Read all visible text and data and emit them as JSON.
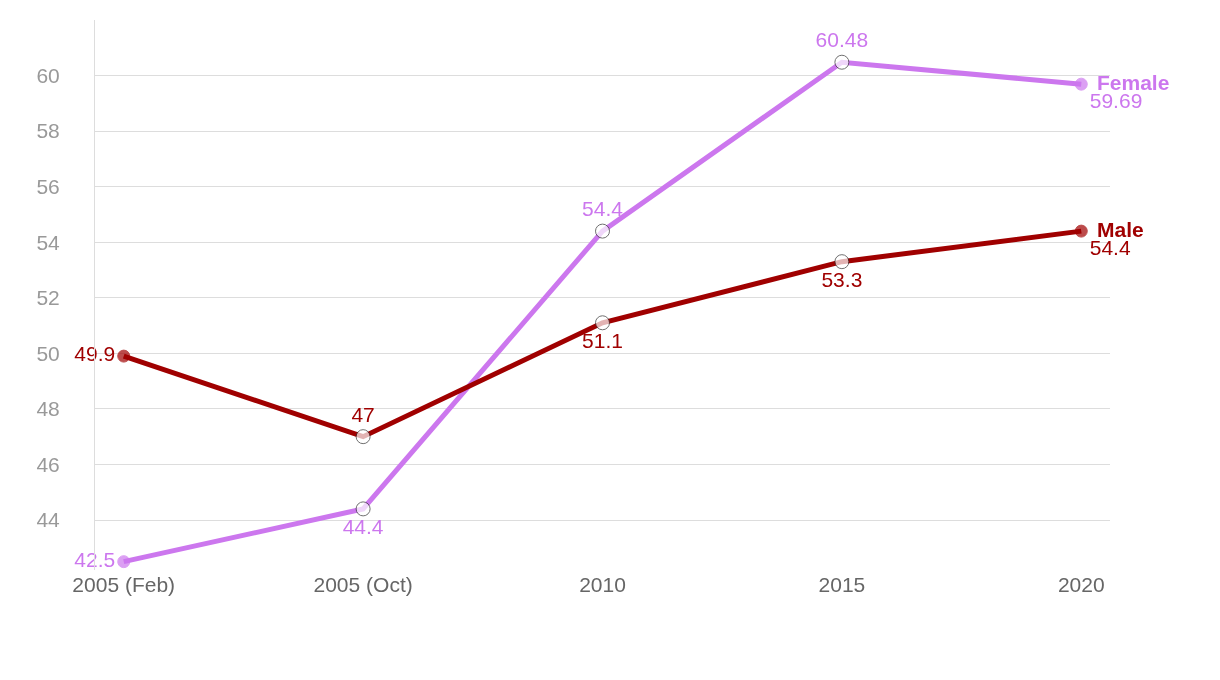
{
  "chart_data": {
    "type": "line",
    "categories": [
      "2005 (Feb)",
      "2005 (Oct)",
      "2010",
      "2015",
      "2020"
    ],
    "series": [
      {
        "name": "Female",
        "color": "#cc77ee",
        "values": [
          42.5,
          44.4,
          54.4,
          60.48,
          59.69
        ]
      },
      {
        "name": "Male",
        "color": "#a00000",
        "values": [
          49.9,
          47,
          51.1,
          53.3,
          54.4
        ]
      }
    ],
    "ylim": [
      42.2,
      62
    ],
    "yticks": [
      44,
      46,
      48,
      50,
      52,
      54,
      56,
      58,
      60
    ],
    "grid": "y",
    "legend": false,
    "marker": "circle",
    "line_style": "solid",
    "data_labels": true
  }
}
